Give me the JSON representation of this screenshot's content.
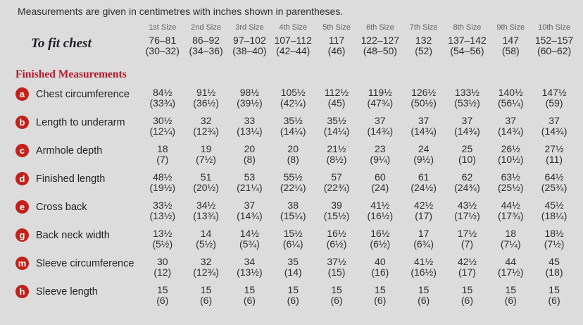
{
  "colors": {
    "background": "#dcdcdc",
    "badge_red": "#c2211a",
    "heading_red": "#b8182b",
    "header_gray": "#5f5f5f",
    "text": "#2e2e2e"
  },
  "intro": "Measurements are given in centimetres with inches shown in parentheses.",
  "size_headers": [
    "1st Size",
    "2nd Size",
    "3rd Size",
    "4th Size",
    "5th Size",
    "6th Size",
    "7th Size",
    "8th Size",
    "9th Size",
    "10th Size"
  ],
  "to_fit_chest": {
    "label": "To fit chest",
    "cm": [
      "76–81",
      "86–92",
      "97–102",
      "107–112",
      "117",
      "122–127",
      "132",
      "137–142",
      "147",
      "152–157"
    ],
    "inches": [
      "(30–32)",
      "(34–36)",
      "(38–40)",
      "(42–44)",
      "(46)",
      "(48–50)",
      "(52)",
      "(54–56)",
      "(58)",
      "(60–62)"
    ]
  },
  "section_title": "Finished Measurements",
  "rows": [
    {
      "letter": "a",
      "label": "Chest circumference",
      "cm": [
        "84½",
        "91½",
        "98½",
        "105½",
        "112½",
        "119½",
        "126½",
        "133½",
        "140½",
        "147½"
      ],
      "inches": [
        "(33¾)",
        "(36½)",
        "(39½)",
        "(42¼)",
        "(45)",
        "(47¾)",
        "(50½)",
        "(53½)",
        "(56¼)",
        "(59)"
      ]
    },
    {
      "letter": "b",
      "label": "Length to underarm",
      "cm": [
        "30½",
        "32",
        "33",
        "35½",
        "35½",
        "37",
        "37",
        "37",
        "37",
        "37"
      ],
      "inches": [
        "(12¼)",
        "(12¾)",
        "(13¼)",
        "(14¼)",
        "(14¼)",
        "(14¾)",
        "(14¾)",
        "(14¾)",
        "(14¾)",
        "(14¾)"
      ]
    },
    {
      "letter": "c",
      "label": "Armhole depth",
      "cm": [
        "18",
        "19",
        "20",
        "20",
        "21½",
        "23",
        "24",
        "25",
        "26½",
        "27½"
      ],
      "inches": [
        "(7)",
        "(7½)",
        "(8)",
        "(8)",
        "(8½)",
        "(9¼)",
        "(9½)",
        "(10)",
        "(10½)",
        "(11)"
      ]
    },
    {
      "letter": "d",
      "label": "Finished length",
      "cm": [
        "48½",
        "51",
        "53",
        "55½",
        "57",
        "60",
        "61",
        "62",
        "63½",
        "64½"
      ],
      "inches": [
        "(19½)",
        "(20½)",
        "(21¼)",
        "(22¼)",
        "(22¾)",
        "(24)",
        "(24½)",
        "(24¾)",
        "(25½)",
        "(25¾)"
      ]
    },
    {
      "letter": "e",
      "label": "Cross back",
      "cm": [
        "33½",
        "34½",
        "37",
        "38",
        "39",
        "41½",
        "42½",
        "43½",
        "44½",
        "45½"
      ],
      "inches": [
        "(13½)",
        "(13¾)",
        "(14¾)",
        "(15¼)",
        "(15½)",
        "(16½)",
        "(17)",
        "(17½)",
        "(17¾)",
        "(18¼)"
      ]
    },
    {
      "letter": "g",
      "label": "Back neck width",
      "cm": [
        "13½",
        "14",
        "14½",
        "15½",
        "16½",
        "16½",
        "17",
        "17½",
        "18",
        "18½"
      ],
      "inches": [
        "(5½)",
        "(5½)",
        "(5¾)",
        "(6¼)",
        "(6½)",
        "(6½)",
        "(6¾)",
        "(7)",
        "(7¼)",
        "(7½)"
      ]
    },
    {
      "letter": "m",
      "label": "Sleeve circumference",
      "cm": [
        "30",
        "32",
        "34",
        "35",
        "37½",
        "40",
        "41½",
        "42½",
        "44",
        "45"
      ],
      "inches": [
        "(12)",
        "(12¾)",
        "(13½)",
        "(14)",
        "(15)",
        "(16)",
        "(16½)",
        "(17)",
        "(17½)",
        "(18)"
      ]
    },
    {
      "letter": "h",
      "label": "Sleeve length",
      "cm": [
        "15",
        "15",
        "15",
        "15",
        "15",
        "15",
        "15",
        "15",
        "15",
        "15"
      ],
      "inches": [
        "(6)",
        "(6)",
        "(6)",
        "(6)",
        "(6)",
        "(6)",
        "(6)",
        "(6)",
        "(6)",
        "(6)"
      ]
    }
  ]
}
